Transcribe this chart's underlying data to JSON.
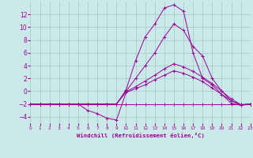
{
  "xlabel": "Windchill (Refroidissement éolien,°C)",
  "bg_color": "#cce9e9",
  "grid_color": "#aacccc",
  "line_color": "#990099",
  "xlim": [
    0,
    23
  ],
  "ylim": [
    -5,
    14
  ],
  "xticks": [
    0,
    1,
    2,
    3,
    4,
    5,
    6,
    7,
    8,
    9,
    10,
    11,
    12,
    13,
    14,
    15,
    16,
    17,
    18,
    19,
    20,
    21,
    22,
    23
  ],
  "yticks": [
    -4,
    -2,
    0,
    2,
    4,
    6,
    8,
    10,
    12
  ],
  "lines": [
    {
      "x": [
        0,
        1,
        2,
        3,
        4,
        5,
        6,
        7,
        8,
        9,
        10,
        11,
        12,
        13,
        14,
        15,
        16,
        17,
        18,
        19,
        20,
        21,
        22,
        23
      ],
      "y": [
        -2,
        -2,
        -2,
        -2,
        -2,
        -2,
        -2,
        -2,
        -2,
        -2,
        -2,
        -2,
        -2,
        -2,
        -2,
        -2,
        -2,
        -2,
        -2,
        -2,
        -2,
        -2,
        -2,
        -2
      ]
    },
    {
      "x": [
        0,
        1,
        2,
        3,
        4,
        5,
        6,
        7,
        8,
        9,
        10,
        11,
        12,
        13,
        14,
        15,
        16,
        17,
        18,
        19,
        20,
        21,
        22,
        23
      ],
      "y": [
        -2,
        -2,
        -2,
        -2,
        -2,
        -2,
        -3,
        -3.5,
        -4.2,
        -4.5,
        -0.2,
        0.4,
        1.0,
        1.8,
        2.5,
        3.2,
        2.8,
        2.2,
        1.5,
        0.5,
        -0.5,
        -1.5,
        -2.1,
        -2.0
      ]
    },
    {
      "x": [
        0,
        1,
        2,
        3,
        4,
        5,
        6,
        7,
        8,
        9,
        10,
        11,
        12,
        13,
        14,
        15,
        16,
        17,
        18,
        19,
        20,
        21,
        22,
        23
      ],
      "y": [
        -2,
        -2,
        -2,
        -2,
        -2,
        -2,
        -2,
        -2,
        -2,
        -2,
        -0.1,
        0.7,
        1.6,
        2.5,
        3.5,
        4.3,
        3.8,
        3.1,
        2.2,
        1.2,
        0.0,
        -1.2,
        -2.1,
        -2.0
      ]
    },
    {
      "x": [
        0,
        1,
        2,
        3,
        4,
        5,
        6,
        7,
        8,
        9,
        10,
        11,
        12,
        13,
        14,
        15,
        16,
        17,
        18,
        19,
        20,
        21,
        22,
        23
      ],
      "y": [
        -2,
        -2,
        -2,
        -2,
        -2,
        -2,
        -2,
        -2,
        -2,
        -2,
        0.0,
        2.0,
        4.0,
        6.0,
        8.5,
        10.5,
        9.5,
        7.0,
        5.5,
        2.0,
        0.0,
        -1.5,
        -2.2,
        -2.0
      ]
    },
    {
      "x": [
        0,
        1,
        2,
        3,
        4,
        5,
        6,
        7,
        8,
        9,
        10,
        11,
        12,
        13,
        14,
        15,
        16,
        17,
        18,
        19,
        20,
        21,
        22,
        23
      ],
      "y": [
        -2,
        -2,
        -2,
        -2,
        -2,
        -2,
        -2,
        -2,
        -2,
        -2,
        0.2,
        4.8,
        8.5,
        10.5,
        13.0,
        13.5,
        12.5,
        6.0,
        2.0,
        1.0,
        -0.5,
        -1.9,
        -2.2,
        -2.0
      ]
    }
  ]
}
